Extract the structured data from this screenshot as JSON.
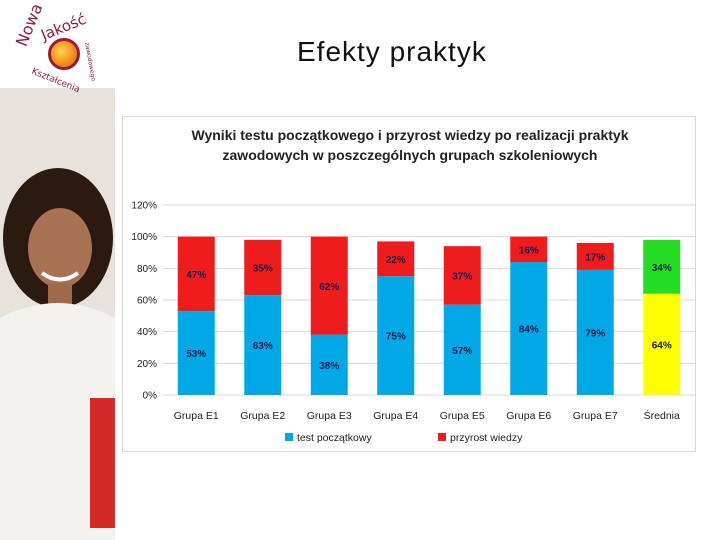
{
  "slide": {
    "title": "Efekty praktyk"
  },
  "logo": {
    "word1": "Nowa",
    "word2": "Jakość",
    "word3": "Kształcenia",
    "word4": "zawodowego"
  },
  "colors": {
    "start": "#00a9e6",
    "growth": "#ee1c1c",
    "avg_start": "#ffff00",
    "avg_growth": "#22dd22",
    "grid": "#d9d9d9"
  },
  "chart_data": {
    "type": "bar",
    "stacked": true,
    "title_line1": "Wyniki testu początkowego i przyrost wiedzy po realizacji praktyk",
    "title_line2": "zawodowych w poszczególnych grupach szkoleniowych",
    "categories": [
      "Grupa  E1",
      "Grupa  E2",
      "Grupa  E3",
      "Grupa  E4",
      "Grupa  E5",
      "Grupa  E6",
      "Grupa  E7",
      "Średnia"
    ],
    "series": [
      {
        "name": "test początkowy",
        "values": [
          53,
          63,
          38,
          75,
          57,
          84,
          79,
          64
        ],
        "labels": [
          "53%",
          "63%",
          "38%",
          "75%",
          "57%",
          "84%",
          "79%",
          "64%"
        ]
      },
      {
        "name": "przyrost wiedzy",
        "values": [
          47,
          35,
          62,
          22,
          37,
          16,
          17,
          34
        ],
        "labels": [
          "47%",
          "35%",
          "62%",
          "22%",
          "37%",
          "16%",
          "17%",
          "34%"
        ]
      }
    ],
    "y_ticks": [
      "0%",
      "20%",
      "40%",
      "60%",
      "80%",
      "100%",
      "120%"
    ],
    "ylim": [
      0,
      120
    ],
    "grid": true,
    "legend_position": "bottom"
  }
}
